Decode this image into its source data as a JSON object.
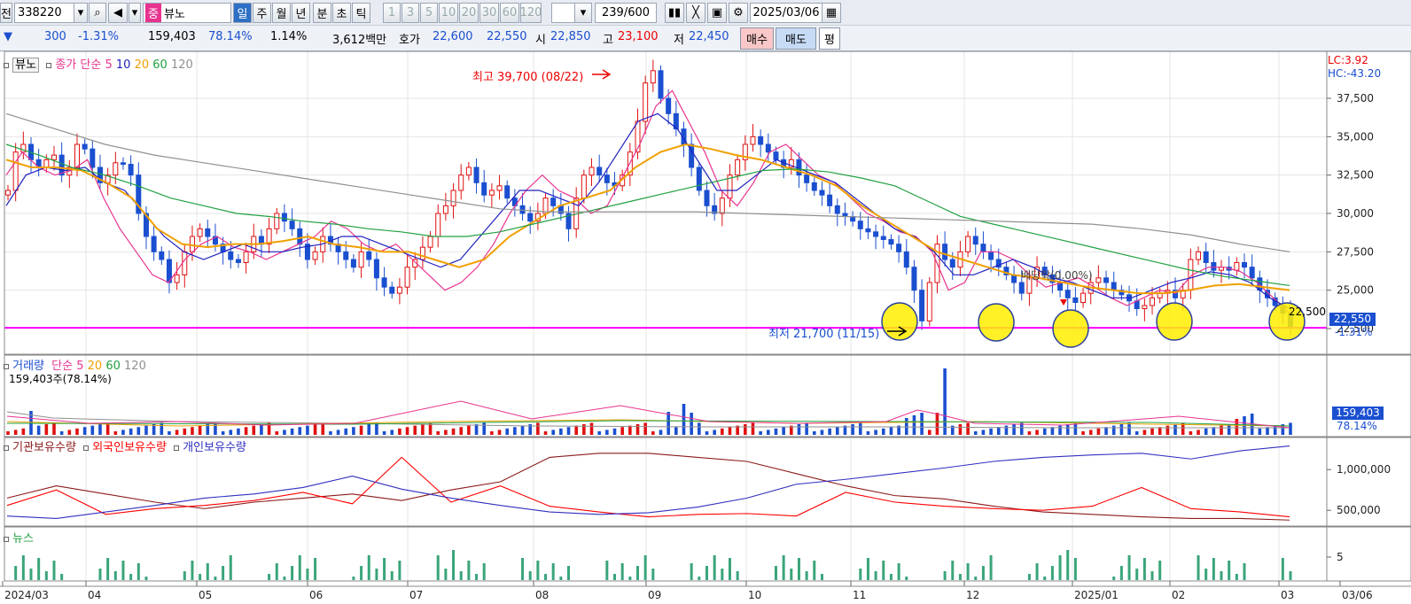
{
  "toolbar": {
    "prefix": "전",
    "code": "338220",
    "market_tag": "중",
    "name": "뷰노",
    "periods": [
      "일",
      "주",
      "월",
      "년",
      "분",
      "초",
      "틱"
    ],
    "active_period": "일",
    "minutes": [
      "1",
      "3",
      "5",
      "10",
      "20",
      "30",
      "60",
      "120"
    ],
    "count": "239",
    "count_total": "/600",
    "date": "2025/03/06"
  },
  "quote": {
    "arrow": "▼",
    "change": "300",
    "change_pct": "-1.31%",
    "volume": "159,403",
    "vol_ratio": "78.14%",
    "turnover": "1.14%",
    "amount": "3,612백만",
    "ask_label": "호가",
    "ask": "22,600",
    "bid": "22,550",
    "open_label": "시",
    "open": "22,850",
    "high_label": "고",
    "high": "23,100",
    "low_label": "저",
    "low": "22,450",
    "buy": "매수",
    "sell": "매도",
    "flat": "평"
  },
  "price_panel": {
    "name": "뷰노",
    "close_label": "종가",
    "ma_label": "단순",
    "ma_periods": [
      "5",
      "10",
      "20",
      "60",
      "120"
    ],
    "high_note": "최고 39,700 (08/22)",
    "low_note": "최저 21,700 (11/15)",
    "dividend_note": "배당락(0.00%)",
    "last_label": "22,500",
    "right_top1": "LC:3.92",
    "right_top2": "HC:-43.20",
    "price_box": "22,550",
    "price_box_pct": "-1.31%",
    "ma_colors": {
      "5": "#e8338f",
      "10": "#2020c0",
      "20": "#f0a000",
      "60": "#20a040",
      "120": "#909090"
    }
  },
  "volume_panel": {
    "label": "거래량",
    "ma_label": "단순",
    "ma_periods": [
      "5",
      "20",
      "60",
      "120"
    ],
    "value_text": "159,403주(78.14%)",
    "box": "159,403",
    "box_pct": "78.14%"
  },
  "holdings_panel": {
    "items": [
      "기관보유수량",
      "외국인보유수량",
      "개인보유수량"
    ],
    "colors": [
      "#8b1a1a",
      "#ff0000",
      "#3030c0"
    ]
  },
  "news_panel": {
    "label": "뉴스"
  },
  "chart_data": [
    {
      "type": "candlestick",
      "title": "",
      "ylim": [
        21000,
        40500
      ],
      "y_ticks": [
        "37,500",
        "35,000",
        "32,500",
        "30,000",
        "27,500",
        "25,000",
        "22,500"
      ],
      "x_ticks": [
        "2024/03",
        "04",
        "05",
        "06",
        "07",
        "08",
        "09",
        "10",
        "11",
        "12",
        "2025/01",
        "02",
        "03",
        "03/06"
      ],
      "reference_line": 22550,
      "high": {
        "value": 39700,
        "date": "08/22"
      },
      "low": {
        "value": 21700,
        "date": "11/15"
      },
      "close_approx": [
        31500,
        34000,
        34500,
        33500,
        33000,
        33500,
        33800,
        32500,
        33000,
        34500,
        34200,
        33000,
        32000,
        32500,
        33300,
        33200,
        32500,
        30000,
        28500,
        27500,
        27000,
        25500,
        26000,
        27500,
        28500,
        29000,
        28500,
        28000,
        27500,
        27000,
        26800,
        27500,
        28500,
        28000,
        29000,
        30000,
        29500,
        29000,
        28000,
        27000,
        27500,
        28500,
        28000,
        27500,
        27000,
        26500,
        27500,
        27000,
        25800,
        25200,
        24800,
        25200,
        26500,
        27000,
        27800,
        28500,
        30000,
        30500,
        31500,
        32500,
        33000,
        32000,
        31200,
        31500,
        31800,
        31000,
        30500,
        30000,
        29500,
        30000,
        31000,
        30500,
        30000,
        29000,
        31000,
        32500,
        33000,
        32500,
        32000,
        31800,
        32500,
        34000,
        36000,
        38500,
        39300,
        37500,
        36500,
        35500,
        34500,
        33000,
        31500,
        30500,
        30000,
        31000,
        32500,
        33500,
        34500,
        35000,
        34500,
        34000,
        33500,
        33000,
        33500,
        32500,
        32000,
        31500,
        31200,
        30500,
        30000,
        29800,
        29500,
        29000,
        28800,
        28500,
        28300,
        28000,
        27500,
        26500,
        25000,
        23000,
        25500,
        28000,
        27000,
        26500,
        27500,
        28500,
        28000,
        27500,
        27000,
        26500,
        26000,
        25500,
        24800,
        25800,
        26500,
        26000,
        25500,
        25000,
        24500,
        24200,
        24800,
        25500,
        25800,
        25500,
        25000,
        24700,
        24300,
        23800,
        24000,
        24500,
        24800,
        25000,
        24500,
        25000,
        27000,
        27500,
        26800,
        26300,
        26500,
        26300,
        26800,
        26500,
        25800,
        25000,
        24500,
        24000,
        23500,
        22550
      ],
      "ma": {
        "5": [
          32500,
          34000,
          33000,
          32500,
          32800,
          33500,
          31000,
          29000,
          27500,
          26000,
          25500,
          27000,
          28000,
          28500,
          27800,
          27500,
          27000,
          27500,
          28000,
          28500,
          29500,
          29000,
          28000,
          27500,
          28000,
          27000,
          26000,
          25000,
          25500,
          26500,
          28000,
          30000,
          31500,
          32500,
          31500,
          31000,
          30000,
          30500,
          32500,
          34500,
          37000,
          38000,
          36000,
          34000,
          31500,
          30500,
          32000,
          34000,
          34500,
          33500,
          32500,
          32000,
          31000,
          30000,
          29500,
          28800,
          28500,
          27500,
          25000,
          25500,
          27500,
          27500,
          27000,
          26000,
          25200,
          25500,
          25800,
          25200,
          24500,
          24000,
          24500,
          25000,
          24800,
          26000,
          26500,
          26500,
          26200,
          25500,
          24500,
          23500
        ],
        "10": [
          30500,
          32500,
          33000,
          32800,
          33000,
          32000,
          31500,
          30000,
          28500,
          27500,
          27000,
          27500,
          28000,
          27500,
          27500,
          27800,
          28000,
          28500,
          28500,
          28000,
          27500,
          27000,
          26500,
          27000,
          28500,
          30000,
          31500,
          31500,
          31000,
          30500,
          32000,
          34000,
          36000,
          36500,
          35500,
          33500,
          31500,
          31500,
          32500,
          33500,
          33000,
          32500,
          32000,
          31000,
          30000,
          29000,
          28500,
          27500,
          26000,
          26000,
          26500,
          27000,
          26500,
          25800,
          25500,
          25000,
          24500,
          24500,
          25000,
          25500,
          25800,
          26200,
          26000,
          25500,
          24500,
          23800
        ],
        "20": [
          33500,
          33000,
          33000,
          32800,
          32000,
          31000,
          29000,
          28000,
          27800,
          28000,
          28000,
          28200,
          28500,
          28000,
          27800,
          27500,
          27500,
          27000,
          26500,
          27000,
          28500,
          29500,
          30500,
          31000,
          31500,
          33000,
          34000,
          34500,
          34200,
          33800,
          33500,
          33000,
          32500,
          31800,
          30500,
          29500,
          28500,
          27500,
          27000,
          26500,
          26000,
          25800,
          25500,
          25200,
          25000,
          24800,
          24800,
          25000,
          25300,
          25400,
          25200,
          25000
        ],
        "60": [
          34500,
          33800,
          33000,
          32500,
          31800,
          31000,
          30500,
          30000,
          29800,
          29500,
          29300,
          29000,
          28800,
          28500,
          28500,
          28800,
          29300,
          29800,
          30300,
          30800,
          31300,
          31800,
          32300,
          32800,
          32900,
          32700,
          32300,
          31800,
          30800,
          29800,
          29300,
          28800,
          28300,
          27800,
          27300,
          26800,
          26300,
          25900,
          25600,
          25300
        ],
        "120": [
          36500,
          35500,
          34500,
          33800,
          33300,
          32800,
          32300,
          31800,
          31300,
          30800,
          30300,
          30100,
          30100,
          30100,
          30100,
          30000,
          29900,
          29800,
          29700,
          29600,
          29500,
          29400,
          29300,
          29000,
          28600,
          28000,
          27500
        ]
      }
    },
    {
      "type": "bar",
      "title": "거래량",
      "note": "red up, blue down"
    },
    {
      "type": "line",
      "title": "",
      "y_ticks": [
        "1,000,000",
        "500,000"
      ],
      "series": [
        {
          "name": "기관보유수량",
          "color": "#8b1a1a",
          "values": [
            650000,
            800000,
            700000,
            600000,
            520000,
            600000,
            650000,
            700000,
            620000,
            750000,
            850000,
            1150000,
            1200000,
            1200000,
            1150000,
            1100000,
            950000,
            800000,
            680000,
            640000,
            550000,
            480000,
            450000,
            420000,
            400000,
            400000,
            380000
          ]
        },
        {
          "name": "외국인보유수량",
          "color": "#ff0000",
          "values": [
            560000,
            750000,
            450000,
            520000,
            560000,
            620000,
            720000,
            580000,
            1150000,
            600000,
            800000,
            550000,
            480000,
            420000,
            450000,
            460000,
            430000,
            720000,
            600000,
            550000,
            520000,
            500000,
            550000,
            780000,
            520000,
            480000,
            420000
          ]
        },
        {
          "name": "개인보유수량",
          "color": "#3030c0",
          "values": [
            430000,
            400000,
            480000,
            560000,
            650000,
            700000,
            780000,
            920000,
            760000,
            650000,
            560000,
            480000,
            450000,
            470000,
            540000,
            650000,
            820000,
            880000,
            950000,
            1020000,
            1100000,
            1150000,
            1180000,
            1200000,
            1130000,
            1230000,
            1290000
          ]
        }
      ]
    },
    {
      "type": "bar",
      "title": "",
      "y_ticks": [
        "5"
      ]
    }
  ]
}
